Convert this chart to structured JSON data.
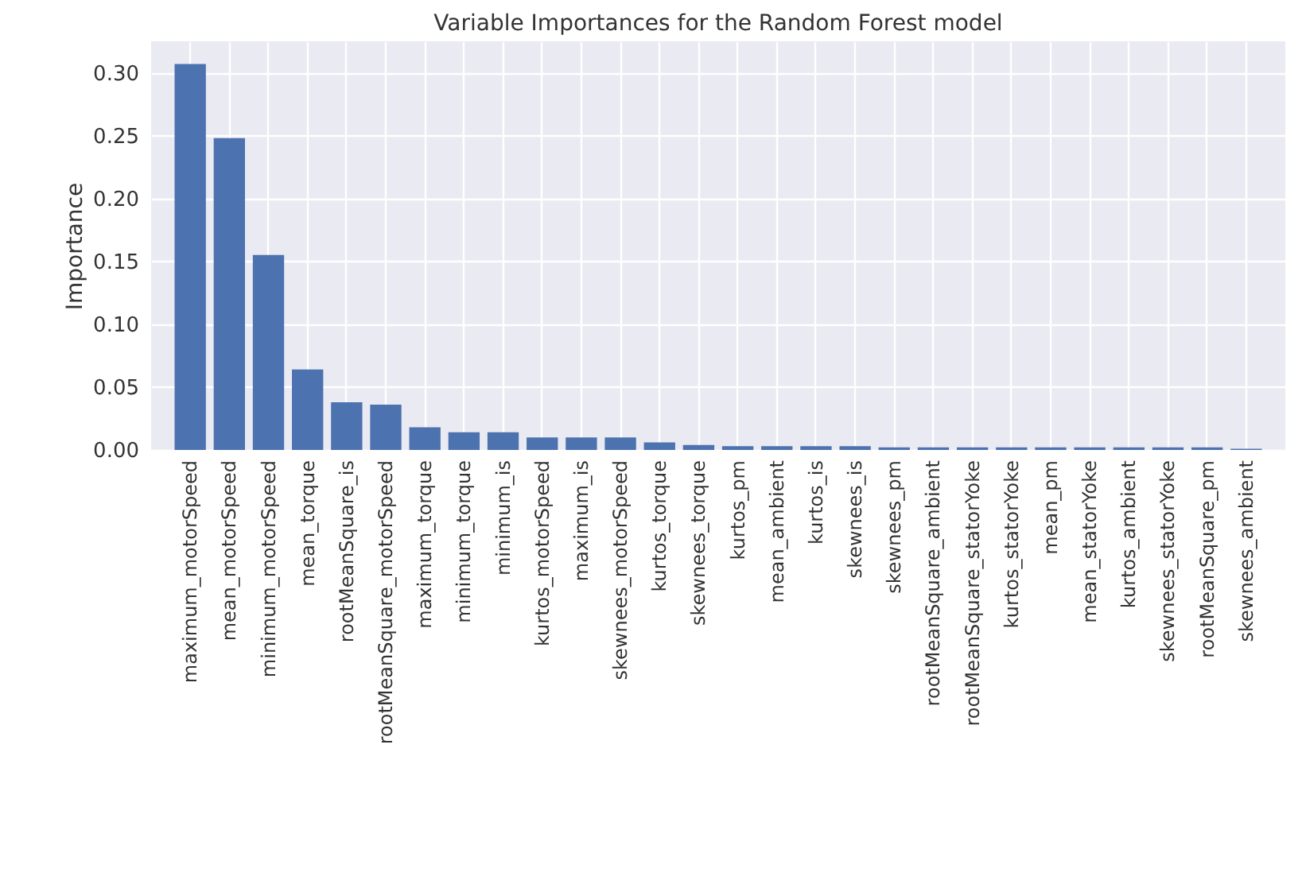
{
  "chart_data": {
    "type": "bar",
    "title": "Variable Importances for the Random Forest model",
    "ylabel": "Importance",
    "categories": [
      "maximum_motorSpeed",
      "mean_motorSpeed",
      "minimum_motorSpeed",
      "mean_torque",
      "rootMeanSquare_is",
      "rootMeanSquare_motorSpeed",
      "maximum_torque",
      "minimum_torque",
      "minimum_is",
      "kurtos_motorSpeed",
      "maximum_is",
      "skewnees_motorSpeed",
      "kurtos_torque",
      "skewnees_torque",
      "kurtos_pm",
      "mean_ambient",
      "kurtos_is",
      "skewnees_is",
      "skewnees_pm",
      "rootMeanSquare_ambient",
      "rootMeanSquare_statorYoke",
      "kurtos_statorYoke",
      "mean_pm",
      "mean_statorYoke",
      "kurtos_ambient",
      "skewnees_statorYoke",
      "rootMeanSquare_pm",
      "skewnees_ambient"
    ],
    "values": [
      0.307,
      0.248,
      0.155,
      0.064,
      0.038,
      0.036,
      0.018,
      0.014,
      0.014,
      0.01,
      0.01,
      0.01,
      0.006,
      0.004,
      0.003,
      0.003,
      0.003,
      0.003,
      0.002,
      0.002,
      0.002,
      0.002,
      0.002,
      0.002,
      0.002,
      0.002,
      0.002,
      0.001
    ],
    "color": "#4c72b0",
    "ylim": [
      0,
      0.325
    ],
    "yticks": [
      {
        "value": 0,
        "label": "0.00"
      },
      {
        "value": 0.05,
        "label": "0.05"
      },
      {
        "value": 0.1,
        "label": "0.10"
      },
      {
        "value": 0.15,
        "label": "0.15"
      },
      {
        "value": 0.2,
        "label": "0.20"
      },
      {
        "value": 0.25,
        "label": "0.25"
      },
      {
        "value": 0.3,
        "label": "0.30"
      }
    ],
    "grid": true
  }
}
